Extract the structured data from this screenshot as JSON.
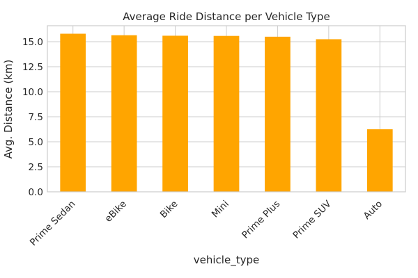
{
  "chart_data": {
    "type": "bar",
    "title": "Average Ride Distance per Vehicle Type",
    "xlabel": "vehicle_type",
    "ylabel": "Avg. Distance (km)",
    "categories": [
      "Prime Sedan",
      "eBike",
      "Bike",
      "Mini",
      "Prime Plus",
      "Prime SUV",
      "Auto"
    ],
    "values": [
      15.8,
      15.65,
      15.6,
      15.58,
      15.5,
      15.25,
      6.25
    ],
    "ylim": [
      0,
      16.6
    ],
    "yticks": [
      "0.0",
      "2.5",
      "5.0",
      "7.5",
      "10.0",
      "12.5",
      "15.0"
    ],
    "bar_color": "#ffa500",
    "grid": true,
    "legend": false
  }
}
